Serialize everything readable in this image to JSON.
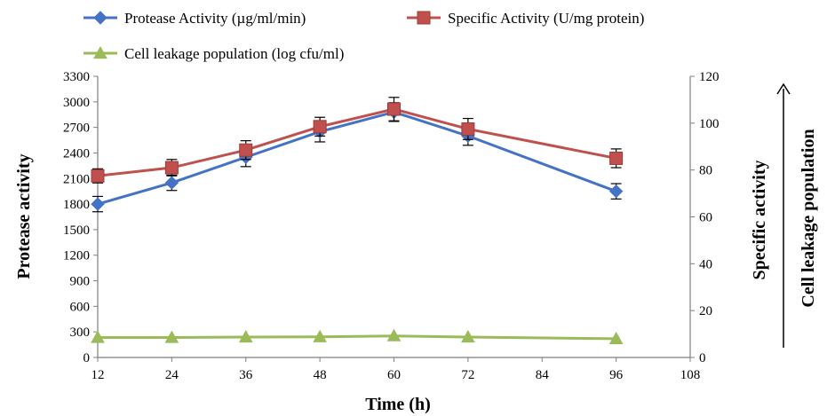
{
  "chart_data": {
    "type": "line",
    "x": [
      12,
      24,
      36,
      48,
      60,
      72,
      96
    ],
    "x_ticks": [
      "12",
      "24",
      "36",
      "48",
      "60",
      "72",
      "84",
      "96",
      "108"
    ],
    "y_left_ticks": [
      "0",
      "300",
      "600",
      "900",
      "1200",
      "1500",
      "1800",
      "2100",
      "2400",
      "2700",
      "3000",
      "3300"
    ],
    "y_right_ticks": [
      "0",
      "20",
      "40",
      "60",
      "80",
      "100",
      "120"
    ],
    "xlim": [
      12,
      108
    ],
    "ylim_left": [
      0,
      3300
    ],
    "ylim_right": [
      0,
      120
    ],
    "xlabel": "Time (h)",
    "ylabel_left": "Protease activity",
    "ylabel_right": "Specific activity",
    "ylabel_right_outer": "Cell leakage population",
    "grid": false,
    "legend_position": "top",
    "series": [
      {
        "name": "Protease Activity (µg/ml/min)",
        "axis": "left",
        "color": "#4472C4",
        "marker": "diamond",
        "values": [
          1800,
          2050,
          2350,
          2650,
          2880,
          2600,
          1950
        ],
        "error": [
          90,
          90,
          110,
          120,
          110,
          110,
          90
        ]
      },
      {
        "name": "Specific Activity (U/mg protein)",
        "axis": "right",
        "color": "#C0504D",
        "marker": "square",
        "values": [
          77.5,
          81,
          88.5,
          98.5,
          106,
          97.5,
          85
        ],
        "error": [
          3,
          3.5,
          4,
          4,
          5,
          4.5,
          4
        ]
      },
      {
        "name": "Cell leakage population (log cfu/ml)",
        "axis": "right",
        "color": "#9BBB59",
        "marker": "triangle",
        "values": [
          8.5,
          8.5,
          8.7,
          8.8,
          9.2,
          8.7,
          8.0
        ],
        "error": [
          0,
          0,
          0,
          0,
          0,
          0,
          0
        ]
      }
    ]
  }
}
